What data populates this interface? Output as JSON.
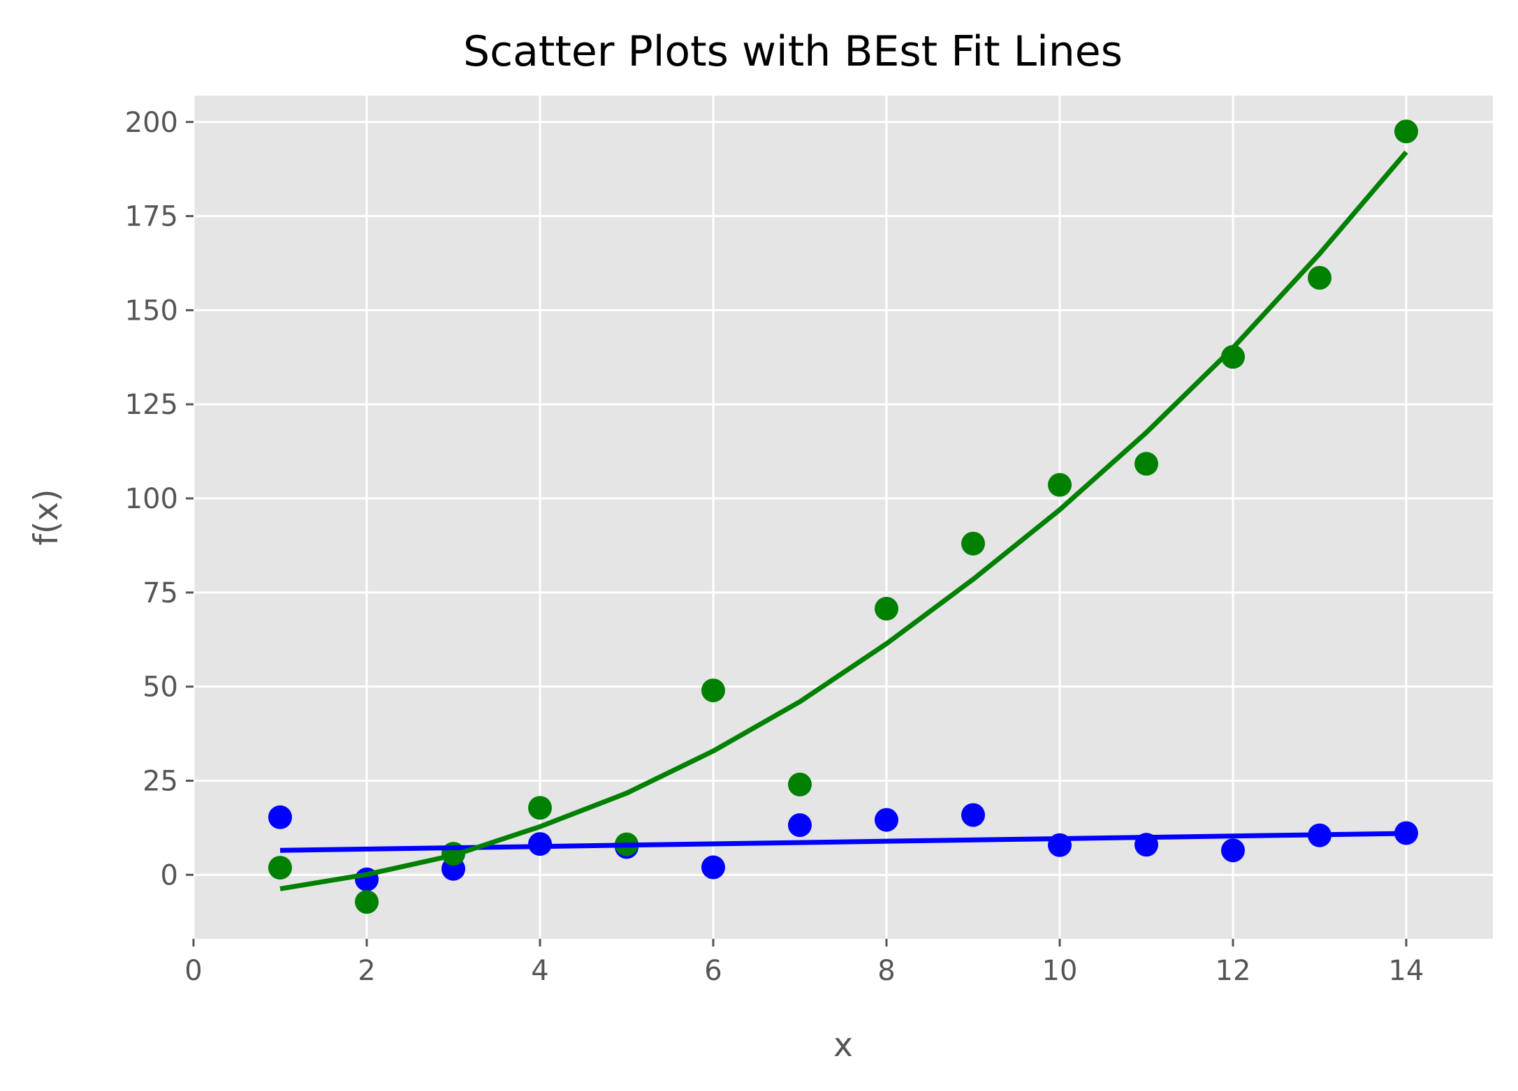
{
  "chart_data": {
    "type": "scatter",
    "title": "Scatter Plots with BEst Fit Lines",
    "xlabel": "x",
    "ylabel": "f(x)",
    "xlim": [
      0,
      15
    ],
    "ylim": [
      -17,
      207
    ],
    "xticks": [
      0,
      2,
      4,
      6,
      8,
      10,
      12,
      14
    ],
    "yticks": [
      0,
      25,
      50,
      75,
      100,
      125,
      150,
      175,
      200
    ],
    "grid": true,
    "background": "#e5e5e5",
    "series": [
      {
        "kind": "scatter",
        "color": "#0000ff",
        "x": [
          1,
          2,
          3,
          4,
          5,
          6,
          7,
          8,
          9,
          10,
          11,
          12,
          13,
          14
        ],
        "y": [
          15.3,
          -1.2,
          1.6,
          8.2,
          7.4,
          2.0,
          13.2,
          14.6,
          15.9,
          7.9,
          8.0,
          6.5,
          10.5,
          11.1
        ]
      },
      {
        "kind": "scatter",
        "color": "#008000",
        "x": [
          1,
          2,
          3,
          4,
          5,
          6,
          7,
          8,
          9,
          10,
          11,
          12,
          13,
          14
        ],
        "y": [
          1.9,
          -7.2,
          5.6,
          17.8,
          8.1,
          49.0,
          24.0,
          70.7,
          88.0,
          103.6,
          109.2,
          137.6,
          158.6,
          197.5
        ]
      },
      {
        "kind": "line",
        "color": "#0000ff",
        "x": [
          1,
          14
        ],
        "y": [
          6.5,
          11.0
        ]
      },
      {
        "kind": "line",
        "color": "#008000",
        "x": [
          1,
          2,
          3,
          4,
          5,
          6,
          7,
          8,
          9,
          10,
          11,
          12,
          13,
          14
        ],
        "y": [
          -3.7,
          0.1,
          5.2,
          12.8,
          21.7,
          32.9,
          46.0,
          61.4,
          78.5,
          97.0,
          117.5,
          140.0,
          165.0,
          192.0
        ]
      }
    ]
  }
}
